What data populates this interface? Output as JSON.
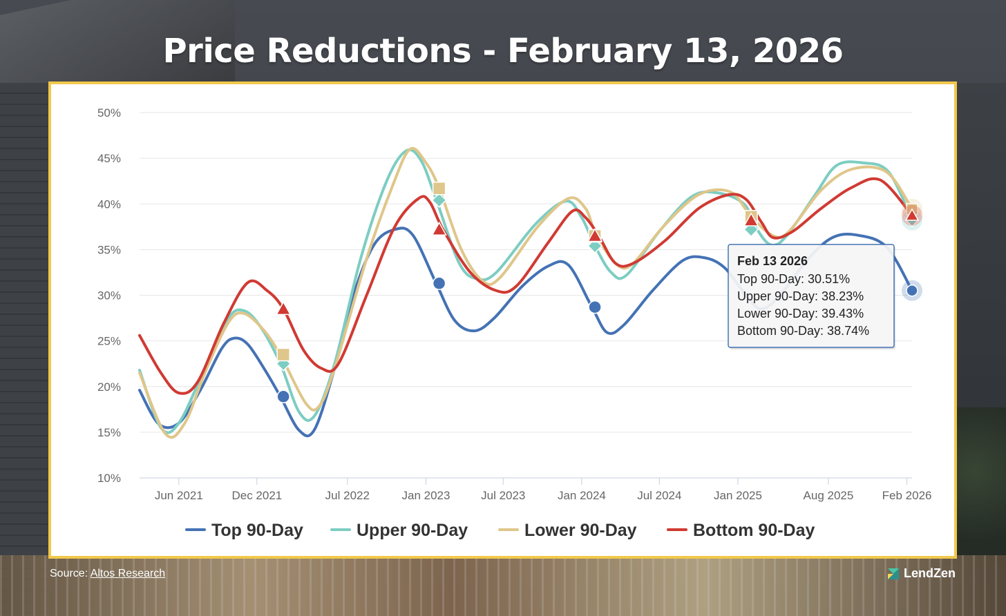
{
  "title": "Price Reductions - February 13, 2026",
  "source": {
    "prefix": "Source: ",
    "link_text": "Altos Research"
  },
  "brand": "LendZen",
  "chart_data": {
    "type": "line",
    "x_start": "2021-03-01",
    "x_end": "2026-02-13",
    "ylim": [
      10,
      50
    ],
    "yticks": [
      "10%",
      "15%",
      "20%",
      "25%",
      "30%",
      "35%",
      "40%",
      "45%",
      "50%"
    ],
    "xticks": [
      {
        "label": "Jun 2021",
        "date": "2021-06-01"
      },
      {
        "label": "Dec 2021",
        "date": "2021-12-01"
      },
      {
        "label": "Jul 2022",
        "date": "2022-07-01"
      },
      {
        "label": "Jan 2023",
        "date": "2023-01-01"
      },
      {
        "label": "Jul 2023",
        "date": "2023-07-01"
      },
      {
        "label": "Jan 2024",
        "date": "2024-01-01"
      },
      {
        "label": "Jul 2024",
        "date": "2024-07-01"
      },
      {
        "label": "Jan 2025",
        "date": "2025-01-01"
      },
      {
        "label": "Aug 2025",
        "date": "2025-08-01"
      },
      {
        "label": "Feb 2026",
        "date": "2026-02-01"
      }
    ],
    "grid": true,
    "legend_position": "bottom",
    "series": [
      {
        "name": "Top 90-Day",
        "color": "#4472b4",
        "marker": "circle",
        "points": [
          [
            "2021-03-01",
            19.6
          ],
          [
            "2021-04-15",
            15.9
          ],
          [
            "2021-06-01",
            16.0
          ],
          [
            "2021-07-20",
            19.5
          ],
          [
            "2021-09-10",
            24.2
          ],
          [
            "2021-10-10",
            25.3
          ],
          [
            "2021-11-10",
            24.6
          ],
          [
            "2021-12-20",
            21.8
          ],
          [
            "2022-01-25",
            18.9
          ],
          [
            "2022-03-10",
            15.2
          ],
          [
            "2022-04-15",
            15.3
          ],
          [
            "2022-06-01",
            22.0
          ],
          [
            "2022-07-15",
            30.0
          ],
          [
            "2022-09-01",
            35.5
          ],
          [
            "2022-10-20",
            37.2
          ],
          [
            "2022-12-01",
            36.6
          ],
          [
            "2023-01-25",
            31.3
          ],
          [
            "2023-03-10",
            27.2
          ],
          [
            "2023-04-25",
            26.1
          ],
          [
            "2023-06-10",
            27.5
          ],
          [
            "2023-08-15",
            31.0
          ],
          [
            "2023-10-15",
            33.2
          ],
          [
            "2023-12-01",
            33.3
          ],
          [
            "2024-01-25",
            28.7
          ],
          [
            "2024-03-01",
            25.9
          ],
          [
            "2024-04-10",
            26.8
          ],
          [
            "2024-06-15",
            30.5
          ],
          [
            "2024-08-25",
            33.8
          ],
          [
            "2024-10-15",
            34.1
          ],
          [
            "2024-12-01",
            33.0
          ],
          [
            "2025-01-20",
            30.0
          ],
          [
            "2025-02-25",
            28.5
          ],
          [
            "2025-04-10",
            30.0
          ],
          [
            "2025-06-15",
            34.0
          ],
          [
            "2025-08-10",
            36.3
          ],
          [
            "2025-10-05",
            36.6
          ],
          [
            "2025-12-15",
            35.3
          ],
          [
            "2026-02-13",
            30.51
          ]
        ],
        "markers": [
          [
            "2022-02-01",
            18.9
          ],
          [
            "2023-02-01",
            31.3
          ],
          [
            "2024-02-01",
            28.7
          ],
          [
            "2026-02-13",
            30.51
          ]
        ]
      },
      {
        "name": "Upper 90-Day",
        "color": "#7dcdc2",
        "marker": "diamond",
        "points": [
          [
            "2021-03-01",
            21.8
          ],
          [
            "2021-04-20",
            15.5
          ],
          [
            "2021-06-01",
            16.0
          ],
          [
            "2021-08-01",
            22.0
          ],
          [
            "2021-09-25",
            27.5
          ],
          [
            "2021-11-01",
            28.3
          ],
          [
            "2021-12-10",
            26.5
          ],
          [
            "2022-01-25",
            22.5
          ],
          [
            "2022-03-10",
            17.2
          ],
          [
            "2022-04-15",
            16.8
          ],
          [
            "2022-06-01",
            22.5
          ],
          [
            "2022-08-01",
            34.0
          ],
          [
            "2022-10-01",
            42.5
          ],
          [
            "2022-11-15",
            45.8
          ],
          [
            "2022-12-20",
            44.8
          ],
          [
            "2023-01-25",
            40.5
          ],
          [
            "2023-03-20",
            33.5
          ],
          [
            "2023-05-01",
            31.8
          ],
          [
            "2023-06-15",
            32.5
          ],
          [
            "2023-09-15",
            37.8
          ],
          [
            "2023-11-25",
            40.3
          ],
          [
            "2024-01-01",
            38.5
          ],
          [
            "2024-02-01",
            35.4
          ],
          [
            "2024-03-10",
            32.5
          ],
          [
            "2024-04-15",
            32.2
          ],
          [
            "2024-07-01",
            37.0
          ],
          [
            "2024-09-15",
            40.8
          ],
          [
            "2024-11-15",
            41.2
          ],
          [
            "2025-01-15",
            40.0
          ],
          [
            "2025-02-15",
            37.2
          ],
          [
            "2025-03-20",
            35.5
          ],
          [
            "2025-04-25",
            36.5
          ],
          [
            "2025-07-01",
            41.0
          ],
          [
            "2025-08-20",
            44.2
          ],
          [
            "2025-10-20",
            44.5
          ],
          [
            "2025-12-20",
            43.5
          ],
          [
            "2026-02-13",
            38.23
          ]
        ],
        "markers": [
          [
            "2022-02-01",
            22.5
          ],
          [
            "2023-02-01",
            40.4
          ],
          [
            "2024-02-01",
            35.4
          ],
          [
            "2025-02-01",
            37.2
          ],
          [
            "2026-02-13",
            38.23
          ]
        ]
      },
      {
        "name": "Lower 90-Day",
        "color": "#dfc68a",
        "marker": "square",
        "points": [
          [
            "2021-03-01",
            21.5
          ],
          [
            "2021-05-01",
            14.8
          ],
          [
            "2021-06-15",
            16.0
          ],
          [
            "2021-08-01",
            21.5
          ],
          [
            "2021-09-25",
            27.0
          ],
          [
            "2021-11-01",
            28.0
          ],
          [
            "2021-12-20",
            26.0
          ],
          [
            "2022-01-30",
            23.0
          ],
          [
            "2022-03-25",
            18.2
          ],
          [
            "2022-04-25",
            17.8
          ],
          [
            "2022-06-01",
            22.0
          ],
          [
            "2022-08-15",
            34.0
          ],
          [
            "2022-10-15",
            42.0
          ],
          [
            "2022-11-25",
            46.0
          ],
          [
            "2023-01-01",
            44.5
          ],
          [
            "2023-02-01",
            41.7
          ],
          [
            "2023-03-25",
            35.0
          ],
          [
            "2023-05-15",
            31.5
          ],
          [
            "2023-06-25",
            32.0
          ],
          [
            "2023-09-20",
            37.5
          ],
          [
            "2023-12-01",
            40.6
          ],
          [
            "2024-01-10",
            39.5
          ],
          [
            "2024-02-05",
            36.5
          ],
          [
            "2024-03-25",
            33.3
          ],
          [
            "2024-05-01",
            33.5
          ],
          [
            "2024-07-10",
            37.5
          ],
          [
            "2024-10-01",
            41.0
          ],
          [
            "2024-12-15",
            41.3
          ],
          [
            "2025-02-01",
            38.6
          ],
          [
            "2025-03-25",
            36.5
          ],
          [
            "2025-05-01",
            37.0
          ],
          [
            "2025-07-15",
            41.5
          ],
          [
            "2025-09-25",
            43.8
          ],
          [
            "2025-12-15",
            43.5
          ],
          [
            "2026-02-13",
            39.43
          ]
        ],
        "markers": [
          [
            "2022-02-01",
            23.5
          ],
          [
            "2023-02-01",
            41.7
          ],
          [
            "2024-02-01",
            36.5
          ],
          [
            "2025-02-01",
            38.6
          ],
          [
            "2026-02-13",
            39.43
          ]
        ]
      },
      {
        "name": "Bottom 90-Day",
        "color": "#d03a33",
        "marker": "triangle",
        "points": [
          [
            "2021-03-01",
            25.6
          ],
          [
            "2021-04-20",
            21.5
          ],
          [
            "2021-06-01",
            19.3
          ],
          [
            "2021-07-15",
            20.5
          ],
          [
            "2021-09-15",
            27.0
          ],
          [
            "2021-11-10",
            31.4
          ],
          [
            "2021-12-25",
            30.5
          ],
          [
            "2022-02-01",
            28.5
          ],
          [
            "2022-03-20",
            24.0
          ],
          [
            "2022-05-01",
            22.0
          ],
          [
            "2022-06-10",
            22.5
          ],
          [
            "2022-08-15",
            30.0
          ],
          [
            "2022-10-20",
            37.5
          ],
          [
            "2022-12-15",
            40.6
          ],
          [
            "2023-01-10",
            40.2
          ],
          [
            "2023-02-10",
            37.2
          ],
          [
            "2023-04-15",
            32.5
          ],
          [
            "2023-06-15",
            30.5
          ],
          [
            "2023-08-01",
            31.0
          ],
          [
            "2023-10-15",
            35.8
          ],
          [
            "2023-12-10",
            39.2
          ],
          [
            "2024-01-10",
            38.5
          ],
          [
            "2024-02-10",
            36.5
          ],
          [
            "2024-03-20",
            33.5
          ],
          [
            "2024-05-01",
            33.5
          ],
          [
            "2024-07-15",
            36.0
          ],
          [
            "2024-10-01",
            39.5
          ],
          [
            "2024-12-10",
            41.0
          ],
          [
            "2025-01-20",
            40.5
          ],
          [
            "2025-02-25",
            38.0
          ],
          [
            "2025-03-25",
            36.3
          ],
          [
            "2025-05-10",
            37.0
          ],
          [
            "2025-07-15",
            39.5
          ],
          [
            "2025-09-25",
            41.8
          ],
          [
            "2025-12-01",
            42.6
          ],
          [
            "2026-02-13",
            38.74
          ]
        ],
        "markers": [
          [
            "2022-02-01",
            28.5
          ],
          [
            "2023-02-01",
            37.2
          ],
          [
            "2024-02-01",
            36.5
          ],
          [
            "2025-02-01",
            38.2
          ],
          [
            "2026-02-13",
            38.74
          ]
        ]
      }
    ],
    "tooltip": {
      "title": "Feb 13 2026",
      "lines": [
        "Top 90-Day: 30.51%",
        "Upper 90-Day: 38.23%",
        "Lower 90-Day: 39.43%",
        "Bottom 90-Day: 38.74%"
      ]
    }
  }
}
